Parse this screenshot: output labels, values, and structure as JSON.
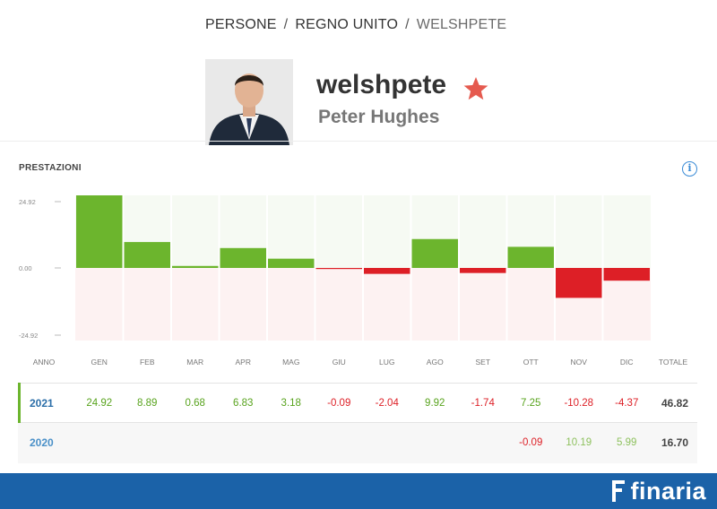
{
  "breadcrumb": {
    "items": [
      "PERSONE",
      "REGNO UNITO",
      "WELSHPETE"
    ],
    "separator": "/"
  },
  "profile": {
    "username": "welshpete",
    "real_name": "Peter Hughes",
    "star_icon": "star-icon",
    "star_color": "#e55a4f"
  },
  "section": {
    "title": "PRESTAZIONI",
    "info_icon": "info-icon",
    "info_glyph": "i"
  },
  "chart_data": {
    "type": "bar",
    "categories": [
      "GEN",
      "FEB",
      "MAR",
      "APR",
      "MAG",
      "GIU",
      "LUG",
      "AGO",
      "SET",
      "OTT",
      "NOV",
      "DIC"
    ],
    "values": [
      24.92,
      8.89,
      0.68,
      6.83,
      3.18,
      -0.09,
      -2.04,
      9.92,
      -1.74,
      7.25,
      -10.28,
      -4.37
    ],
    "yticks": [
      "24.92",
      "0.00",
      "-24.92"
    ],
    "ylim": [
      -24.92,
      24.92
    ],
    "positive_color": "#6cb52d",
    "negative_color": "#dd1f26",
    "positive_band_color": "#f6faf3",
    "negative_band_color": "#fdf2f2"
  },
  "table": {
    "headers": {
      "year": "ANNO",
      "months": [
        "GEN",
        "FEB",
        "MAR",
        "APR",
        "MAG",
        "GIU",
        "LUG",
        "AGO",
        "SET",
        "OTT",
        "NOV",
        "DIC"
      ],
      "total": "TOTALE"
    },
    "rows": [
      {
        "year": "2021",
        "values": [
          "24.92",
          "8.89",
          "0.68",
          "6.83",
          "3.18",
          "-0.09",
          "-2.04",
          "9.92",
          "-1.74",
          "7.25",
          "-10.28",
          "-4.37"
        ],
        "total": "46.82"
      },
      {
        "year": "2020",
        "values": [
          "",
          "",
          "",
          "",
          "",
          "",
          "",
          "",
          "",
          "-0.09",
          "10.19",
          "5.99"
        ],
        "total": "16.70"
      }
    ]
  },
  "footer": {
    "brand": "finaria",
    "logo_icon": "finaria-logo-icon",
    "background": "#1b62a8"
  }
}
